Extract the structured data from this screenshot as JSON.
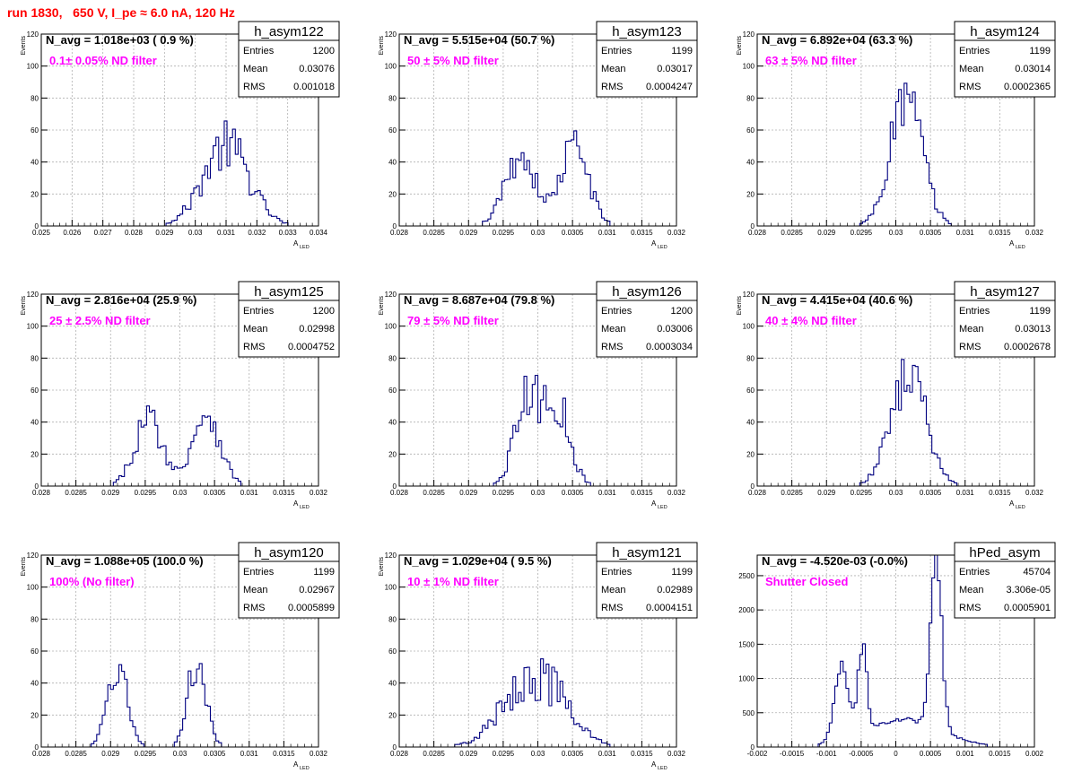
{
  "title": "run 1830,   650 V, I_pe ≈ 6.0 nA, 120 Hz",
  "colors": {
    "hist": "#000080",
    "filter_text": "#ff00ff",
    "title": "#ff0000",
    "frame": "#000000"
  },
  "chart_data": [
    {
      "type": "histogram",
      "name": "h_asym122",
      "navg": "N_avg = 1.018e+03 ( 0.9 %)",
      "filter": "0.1± 0.05% ND filter",
      "stats": [
        [
          "Entries",
          "1200"
        ],
        [
          "Mean",
          "0.03076"
        ],
        [
          "RMS",
          "0.001018"
        ]
      ],
      "xlabel": "A",
      "xlabel_sub": "LED",
      "ylabel": "Events",
      "xlim": [
        0.025,
        0.034
      ],
      "ylim": [
        0,
        120
      ],
      "xticks": [
        0.025,
        0.026,
        0.027,
        0.028,
        0.029,
        0.03,
        0.031,
        0.032,
        0.033,
        0.034
      ],
      "xticklabels": [
        "0.025",
        "0.026",
        "0.027",
        "0.028",
        "0.029",
        "0.03",
        "0.031",
        "0.032",
        "0.033",
        "0.034"
      ],
      "yticks": [
        0,
        20,
        40,
        60,
        80,
        100,
        120
      ],
      "yticklabels": [
        "0",
        "20",
        "40",
        "60",
        "80",
        "100",
        "120"
      ],
      "peaks": [
        [
          0.031,
          0.00075,
          50,
          0.5
        ]
      ],
      "noise": 0.25,
      "bins": 100,
      "grid": true
    },
    {
      "type": "histogram",
      "name": "h_asym123",
      "navg": "N_avg = 5.515e+04 (50.7 %)",
      "filter": "50 ± 5% ND filter",
      "stats": [
        [
          "Entries",
          "1199"
        ],
        [
          "Mean",
          "0.03017"
        ],
        [
          "RMS",
          "0.0004247"
        ]
      ],
      "xlabel": "A",
      "xlabel_sub": "LED",
      "ylabel": "Events",
      "xlim": [
        0.028,
        0.032
      ],
      "ylim": [
        0,
        120
      ],
      "xticks": [
        0.028,
        0.0285,
        0.029,
        0.0295,
        0.03,
        0.0305,
        0.031,
        0.0315,
        0.032
      ],
      "xticklabels": [
        "0.028",
        "0.0285",
        "0.029",
        "0.0295",
        "0.03",
        "0.0305",
        "0.031",
        "0.0315",
        "0.032"
      ],
      "yticks": [
        0,
        20,
        40,
        60,
        80,
        100,
        120
      ],
      "yticklabels": [
        "0",
        "20",
        "40",
        "60",
        "80",
        "100",
        "120"
      ],
      "peaks": [
        [
          0.02975,
          0.00022,
          44,
          0.5
        ],
        [
          0.03053,
          0.0002,
          50,
          0.5
        ]
      ],
      "noise": 0.2,
      "bins": 100,
      "grid": true
    },
    {
      "type": "histogram",
      "name": "h_asym124",
      "navg": "N_avg = 6.892e+04 (63.3 %)",
      "filter": "63 ± 5% ND filter",
      "stats": [
        [
          "Entries",
          "1199"
        ],
        [
          "Mean",
          "0.03014"
        ],
        [
          "RMS",
          "0.0002365"
        ]
      ],
      "xlabel": "A",
      "xlabel_sub": "LED",
      "ylabel": "Events",
      "xlim": [
        0.028,
        0.032
      ],
      "ylim": [
        0,
        120
      ],
      "xticks": [
        0.028,
        0.0285,
        0.029,
        0.0295,
        0.03,
        0.0305,
        0.031,
        0.0315,
        0.032
      ],
      "xticklabels": [
        "0.028",
        "0.0285",
        "0.029",
        "0.0295",
        "0.03",
        "0.0305",
        "0.031",
        "0.0315",
        "0.032"
      ],
      "yticks": [
        0,
        20,
        40,
        60,
        80,
        100,
        120
      ],
      "yticklabels": [
        "0",
        "20",
        "40",
        "60",
        "80",
        "100",
        "120"
      ],
      "peaks": [
        [
          0.03015,
          0.00023,
          80,
          0.5
        ]
      ],
      "noise": 0.2,
      "bins": 100,
      "grid": true
    },
    {
      "type": "histogram",
      "name": "h_asym125",
      "navg": "N_avg = 2.816e+04 (25.9 %)",
      "filter": "25 ± 2.5% ND filter",
      "stats": [
        [
          "Entries",
          "1200"
        ],
        [
          "Mean",
          "0.02998"
        ],
        [
          "RMS",
          "0.0004752"
        ]
      ],
      "xlabel": "A",
      "xlabel_sub": "LED",
      "ylabel": "Events",
      "xlim": [
        0.028,
        0.032
      ],
      "ylim": [
        0,
        120
      ],
      "xticks": [
        0.028,
        0.0285,
        0.029,
        0.0295,
        0.03,
        0.0305,
        0.031,
        0.0315,
        0.032
      ],
      "xticklabels": [
        "0.028",
        "0.0285",
        "0.029",
        "0.0295",
        "0.03",
        "0.0305",
        "0.031",
        "0.0315",
        "0.032"
      ],
      "yticks": [
        0,
        20,
        40,
        60,
        80,
        100,
        120
      ],
      "yticklabels": [
        "0",
        "20",
        "40",
        "60",
        "80",
        "100",
        "120"
      ],
      "peaks": [
        [
          0.02955,
          0.0002,
          42,
          0.5
        ],
        [
          0.03038,
          0.0002,
          46,
          0.5
        ]
      ],
      "noise": 0.2,
      "bins": 100,
      "grid": true
    },
    {
      "type": "histogram",
      "name": "h_asym126",
      "navg": "N_avg = 8.687e+04 (79.8 %)",
      "filter": "79 ± 5% ND filter",
      "stats": [
        [
          "Entries",
          "1200"
        ],
        [
          "Mean",
          "0.03006"
        ],
        [
          "RMS",
          "0.0003034"
        ]
      ],
      "xlabel": "A",
      "xlabel_sub": "LED",
      "ylabel": "Events",
      "xlim": [
        0.028,
        0.032
      ],
      "ylim": [
        0,
        120
      ],
      "xticks": [
        0.028,
        0.0285,
        0.029,
        0.0295,
        0.03,
        0.0305,
        0.031,
        0.0315,
        0.032
      ],
      "xticklabels": [
        "0.028",
        "0.0285",
        "0.029",
        "0.0295",
        "0.03",
        "0.0305",
        "0.031",
        "0.0315",
        "0.032"
      ],
      "yticks": [
        0,
        20,
        40,
        60,
        80,
        100,
        120
      ],
      "yticklabels": [
        "0",
        "20",
        "40",
        "60",
        "80",
        "100",
        "120"
      ],
      "peaks": [
        [
          0.02985,
          0.00018,
          54,
          0.5
        ],
        [
          0.03028,
          0.00018,
          50,
          0.5
        ]
      ],
      "noise": 0.22,
      "bins": 100,
      "grid": true
    },
    {
      "type": "histogram",
      "name": "h_asym127",
      "navg": "N_avg = 4.415e+04 (40.6 %)",
      "filter": "40 ± 4% ND filter",
      "stats": [
        [
          "Entries",
          "1199"
        ],
        [
          "Mean",
          "0.03013"
        ],
        [
          "RMS",
          "0.0002678"
        ]
      ],
      "xlabel": "A",
      "xlabel_sub": "LED",
      "ylabel": "Events",
      "xlim": [
        0.028,
        0.032
      ],
      "ylim": [
        0,
        120
      ],
      "xticks": [
        0.028,
        0.0285,
        0.029,
        0.0295,
        0.03,
        0.0305,
        0.031,
        0.0315,
        0.032
      ],
      "xticklabels": [
        "0.028",
        "0.0285",
        "0.029",
        "0.0295",
        "0.03",
        "0.0305",
        "0.031",
        "0.0315",
        "0.032"
      ],
      "yticks": [
        0,
        20,
        40,
        60,
        80,
        100,
        120
      ],
      "yticklabels": [
        "0",
        "20",
        "40",
        "60",
        "80",
        "100",
        "120"
      ],
      "peaks": [
        [
          0.03018,
          0.00025,
          72,
          0.5
        ]
      ],
      "noise": 0.2,
      "bins": 100,
      "grid": true
    },
    {
      "type": "histogram",
      "name": "h_asym120",
      "navg": "N_avg = 1.088e+05 (100.0 %)",
      "filter": "100% (No filter)",
      "stats": [
        [
          "Entries",
          "1199"
        ],
        [
          "Mean",
          "0.02967"
        ],
        [
          "RMS",
          "0.0005899"
        ]
      ],
      "xlabel": "A",
      "xlabel_sub": "LED",
      "ylabel": "Events",
      "xlim": [
        0.028,
        0.032
      ],
      "ylim": [
        0,
        120
      ],
      "xticks": [
        0.028,
        0.0285,
        0.029,
        0.0295,
        0.03,
        0.0305,
        0.031,
        0.0315,
        0.032
      ],
      "xticklabels": [
        "0.028",
        "0.0285",
        "0.029",
        "0.0295",
        "0.03",
        "0.0305",
        "0.031",
        "0.0315",
        "0.032"
      ],
      "yticks": [
        0,
        20,
        40,
        60,
        80,
        100,
        120
      ],
      "yticklabels": [
        "0",
        "20",
        "40",
        "60",
        "80",
        "100",
        "120"
      ],
      "peaks": [
        [
          0.0291,
          0.00014,
          50,
          0.5
        ],
        [
          0.03025,
          0.00013,
          54,
          0.5
        ]
      ],
      "noise": 0.2,
      "bins": 100,
      "grid": true
    },
    {
      "type": "histogram",
      "name": "h_asym121",
      "navg": "N_avg = 1.029e+04 ( 9.5 %)",
      "filter": "10 ± 1% ND filter",
      "stats": [
        [
          "Entries",
          "1199"
        ],
        [
          "Mean",
          "0.02989"
        ],
        [
          "RMS",
          "0.0004151"
        ]
      ],
      "xlabel": "A",
      "xlabel_sub": "LED",
      "ylabel": "Events",
      "xlim": [
        0.028,
        0.032
      ],
      "ylim": [
        0,
        120
      ],
      "xticks": [
        0.028,
        0.0285,
        0.029,
        0.0295,
        0.03,
        0.0305,
        0.031,
        0.0315,
        0.032
      ],
      "xticklabels": [
        "0.028",
        "0.0285",
        "0.029",
        "0.0295",
        "0.03",
        "0.0305",
        "0.031",
        "0.0315",
        "0.032"
      ],
      "yticks": [
        0,
        20,
        40,
        60,
        80,
        100,
        120
      ],
      "yticklabels": [
        "0",
        "20",
        "40",
        "60",
        "80",
        "100",
        "120"
      ],
      "peaks": [
        [
          0.02995,
          0.00042,
          46,
          0.5
        ]
      ],
      "noise": 0.3,
      "bins": 100,
      "grid": true
    },
    {
      "type": "histogram",
      "name": "hPed_asym",
      "navg": "N_avg = -4.520e-03 (-0.0%)",
      "filter": "Shutter Closed",
      "stats": [
        [
          "Entries",
          "45704"
        ],
        [
          "Mean",
          "3.306e-05"
        ],
        [
          "RMS",
          "0.0005901"
        ]
      ],
      "xlabel": "",
      "xlabel_sub": "",
      "ylabel": "",
      "xlim": [
        -0.002,
        0.002
      ],
      "ylim": [
        0,
        2800
      ],
      "xticks": [
        -0.002,
        -0.0015,
        -0.001,
        -0.0005,
        0,
        0.0005,
        0.001,
        0.0015,
        0.002
      ],
      "xticklabels": [
        "-0.002",
        "-0.0015",
        "-0.001",
        "-0.0005",
        "0",
        "0.0005",
        "0.001",
        "0.0015",
        "0.002"
      ],
      "yticks": [
        0,
        500,
        1000,
        1500,
        2000,
        2500
      ],
      "yticklabels": [
        "0",
        "500",
        "1000",
        "1500",
        "2000",
        "2500"
      ],
      "peaks": [
        [
          -0.00078,
          0.0001,
          1050,
          0.5
        ],
        [
          -0.00048,
          6e-05,
          1300,
          0.5
        ],
        [
          0.00058,
          8e-05,
          2550,
          0.5
        ],
        [
          0.0001,
          0.00055,
          400,
          0.5
        ]
      ],
      "noise": 0.07,
      "bins": 100,
      "grid": true
    }
  ]
}
